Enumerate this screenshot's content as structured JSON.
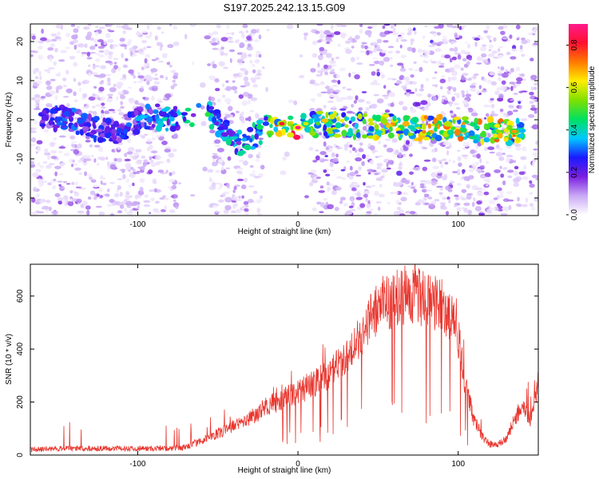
{
  "title": "S197.2025.242.13.15.G09",
  "colors": {
    "spectrogram_dot": "#7a1fe0",
    "snr_line": "#e8372f",
    "frame": "#000000"
  },
  "chart_data": [
    {
      "type": "heatmap",
      "title": "S197.2025.242.13.15.G09",
      "xlabel": "Height of straight line (km)",
      "ylabel": "Frequency (Hz)",
      "xlim": [
        -167,
        150
      ],
      "ylim": [
        -24.5,
        24.5
      ],
      "xticks": [
        -100,
        0,
        100
      ],
      "xtick_labels": [
        "-100",
        "0",
        "100"
      ],
      "yticks": [
        -20,
        -10,
        0,
        10,
        20
      ],
      "ytick_labels": [
        "-20",
        "-10",
        "0",
        "10",
        "20"
      ],
      "colorbar": {
        "label": "Normalized spectral amplitude",
        "range": [
          0.0,
          0.9
        ],
        "ticks": [
          0.0,
          0.2,
          0.4,
          0.6,
          0.8
        ],
        "tick_labels": [
          "0.0",
          "0.2",
          "0.4",
          "0.6",
          "0.8"
        ]
      },
      "data_gaps_km": [
        [
          -76,
          -55
        ],
        [
          -23,
          8
        ],
        [
          142,
          145
        ]
      ],
      "ridge": {
        "name": "dominant frequency track",
        "points": [
          {
            "x": -160,
            "y": -1,
            "amp": 0.25
          },
          {
            "x": -145,
            "y": 1,
            "amp": 0.3
          },
          {
            "x": -130,
            "y": -2,
            "amp": 0.3
          },
          {
            "x": -115,
            "y": -3,
            "amp": 0.25
          },
          {
            "x": -95,
            "y": 1,
            "amp": 0.35
          },
          {
            "x": -70,
            "y": 0,
            "amp": 0.4
          },
          {
            "x": -60,
            "y": 3,
            "amp": 0.45
          },
          {
            "x": -52,
            "y": 0,
            "amp": 0.45
          },
          {
            "x": -45,
            "y": -3,
            "amp": 0.4
          },
          {
            "x": -38,
            "y": -6,
            "amp": 0.4
          },
          {
            "x": -30,
            "y": -5,
            "amp": 0.4
          },
          {
            "x": -20,
            "y": -2,
            "amp": 0.45
          },
          {
            "x": -10,
            "y": -1,
            "amp": 0.8
          },
          {
            "x": 0,
            "y": -2,
            "amp": 0.9
          },
          {
            "x": 5,
            "y": -1,
            "amp": 0.6
          },
          {
            "x": 135,
            "y": -3,
            "amp": 0.7
          },
          {
            "x": 145,
            "y": -3,
            "amp": 0.4
          }
        ]
      }
    },
    {
      "type": "line",
      "xlabel": "Height of straight line (km)",
      "ylabel": "SNR (10 * v/v)",
      "xlim": [
        -167,
        150
      ],
      "ylim": [
        0,
        720
      ],
      "xticks": [
        -100,
        0,
        100
      ],
      "xtick_labels": [
        "-100",
        "0",
        "100"
      ],
      "yticks": [
        0,
        200,
        400,
        600
      ],
      "ytick_labels": [
        "0",
        "200",
        "400",
        "600"
      ],
      "series": [
        {
          "name": "SNR",
          "x": [
            -167,
            -150,
            -130,
            -110,
            -90,
            -80,
            -70,
            -60,
            -50,
            -40,
            -30,
            -20,
            -10,
            0,
            10,
            20,
            25,
            30,
            35,
            40,
            45,
            50,
            55,
            60,
            65,
            70,
            75,
            80,
            85,
            90,
            95,
            100,
            105,
            110,
            115,
            120,
            125,
            130,
            135,
            140,
            145,
            150
          ],
          "values": [
            20,
            25,
            25,
            25,
            25,
            25,
            30,
            55,
            80,
            110,
            140,
            180,
            210,
            240,
            270,
            310,
            340,
            370,
            420,
            460,
            520,
            550,
            570,
            590,
            600,
            610,
            600,
            580,
            560,
            560,
            530,
            450,
            250,
            130,
            70,
            40,
            40,
            60,
            130,
            190,
            130,
            280
          ]
        }
      ]
    }
  ]
}
